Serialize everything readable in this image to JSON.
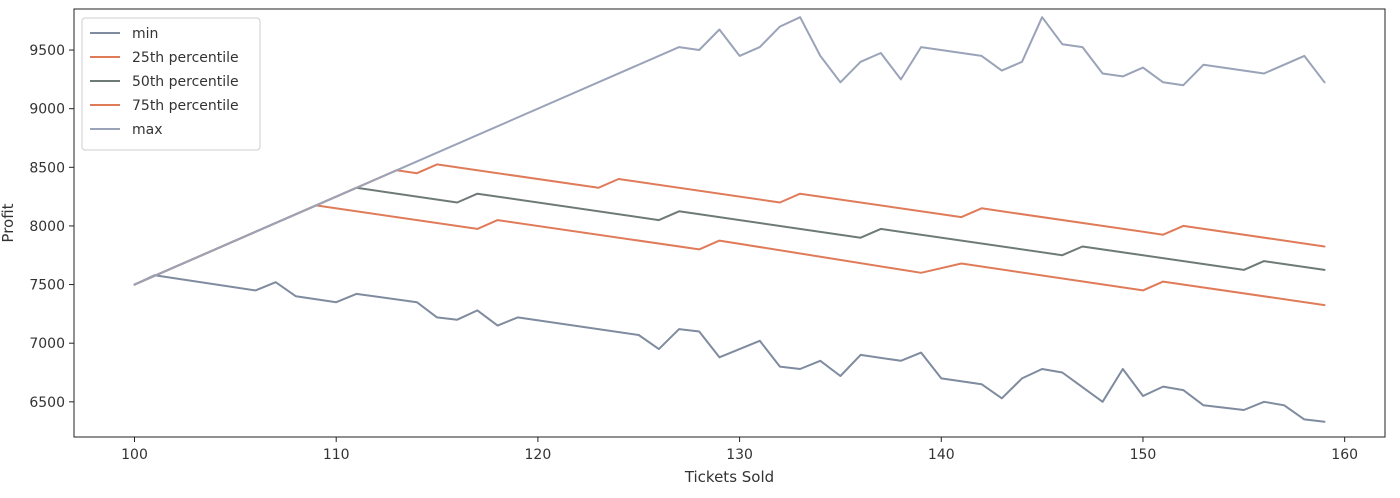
{
  "chart_data": {
    "type": "line",
    "title": "",
    "xlabel": "Tickets Sold",
    "ylabel": "Profit",
    "xlim": [
      97,
      162
    ],
    "ylim": [
      6200,
      9850
    ],
    "xticks": [
      100,
      110,
      120,
      130,
      140,
      150,
      160
    ],
    "yticks": [
      6500,
      7000,
      7500,
      8000,
      8500,
      9000,
      9500
    ],
    "grid": false,
    "legend_position": "top-left",
    "series": [
      {
        "name": "min",
        "color": "#7f8b9e",
        "points": [
          [
            100,
            7500
          ],
          [
            101,
            7580
          ],
          [
            106,
            7450
          ],
          [
            107,
            7520
          ],
          [
            108,
            7400
          ],
          [
            110,
            7350
          ],
          [
            111,
            7420
          ],
          [
            114,
            7350
          ],
          [
            115,
            7220
          ],
          [
            116,
            7200
          ],
          [
            117,
            7280
          ],
          [
            118,
            7150
          ],
          [
            119,
            7220
          ],
          [
            125,
            7070
          ],
          [
            126,
            6950
          ],
          [
            127,
            7120
          ],
          [
            128,
            7100
          ],
          [
            129,
            6880
          ],
          [
            131,
            7020
          ],
          [
            132,
            6800
          ],
          [
            133,
            6780
          ],
          [
            134,
            6850
          ],
          [
            135,
            6720
          ],
          [
            136,
            6900
          ],
          [
            138,
            6850
          ],
          [
            139,
            6920
          ],
          [
            140,
            6700
          ],
          [
            142,
            6650
          ],
          [
            143,
            6530
          ],
          [
            144,
            6700
          ],
          [
            145,
            6780
          ],
          [
            146,
            6750
          ],
          [
            148,
            6500
          ],
          [
            149,
            6780
          ],
          [
            150,
            6550
          ],
          [
            151,
            6630
          ],
          [
            152,
            6600
          ],
          [
            153,
            6470
          ],
          [
            155,
            6430
          ],
          [
            156,
            6500
          ],
          [
            157,
            6470
          ],
          [
            158,
            6350
          ],
          [
            159,
            6330
          ]
        ]
      },
      {
        "name": "25th percentile",
        "color": "#e07b5a",
        "points": [
          [
            100,
            7500
          ],
          [
            109,
            8175
          ],
          [
            117,
            7975
          ],
          [
            118,
            8050
          ],
          [
            128,
            7800
          ],
          [
            129,
            7875
          ],
          [
            139,
            7600
          ],
          [
            141,
            7680
          ],
          [
            150,
            7450
          ],
          [
            151,
            7525
          ],
          [
            159,
            7325
          ]
        ]
      },
      {
        "name": "50th percentile",
        "color": "#6e7a78",
        "points": [
          [
            100,
            7500
          ],
          [
            111,
            8325
          ],
          [
            116,
            8200
          ],
          [
            117,
            8275
          ],
          [
            126,
            8050
          ],
          [
            127,
            8125
          ],
          [
            136,
            7900
          ],
          [
            137,
            7975
          ],
          [
            146,
            7750
          ],
          [
            147,
            7825
          ],
          [
            155,
            7625
          ],
          [
            156,
            7700
          ],
          [
            159,
            7625
          ]
        ]
      },
      {
        "name": "75th percentile",
        "color": "#e07b5a",
        "points": [
          [
            100,
            7500
          ],
          [
            113,
            8475
          ],
          [
            114,
            8450
          ],
          [
            115,
            8525
          ],
          [
            123,
            8325
          ],
          [
            124,
            8400
          ],
          [
            132,
            8200
          ],
          [
            133,
            8275
          ],
          [
            141,
            8075
          ],
          [
            142,
            8150
          ],
          [
            151,
            7925
          ],
          [
            152,
            8000
          ],
          [
            159,
            7825
          ]
        ]
      },
      {
        "name": "max",
        "color": "#9aa3b8",
        "points": [
          [
            100,
            7500
          ],
          [
            127,
            9525
          ],
          [
            128,
            9500
          ],
          [
            129,
            9675
          ],
          [
            130,
            9450
          ],
          [
            131,
            9525
          ],
          [
            132,
            9700
          ],
          [
            133,
            9780
          ],
          [
            134,
            9450
          ],
          [
            135,
            9225
          ],
          [
            136,
            9400
          ],
          [
            137,
            9475
          ],
          [
            138,
            9250
          ],
          [
            139,
            9525
          ],
          [
            142,
            9450
          ],
          [
            143,
            9325
          ],
          [
            144,
            9400
          ],
          [
            145,
            9780
          ],
          [
            146,
            9550
          ],
          [
            147,
            9525
          ],
          [
            148,
            9300
          ],
          [
            149,
            9275
          ],
          [
            150,
            9350
          ],
          [
            151,
            9225
          ],
          [
            152,
            9200
          ],
          [
            153,
            9375
          ],
          [
            156,
            9300
          ],
          [
            158,
            9450
          ],
          [
            159,
            9225
          ]
        ]
      }
    ]
  }
}
